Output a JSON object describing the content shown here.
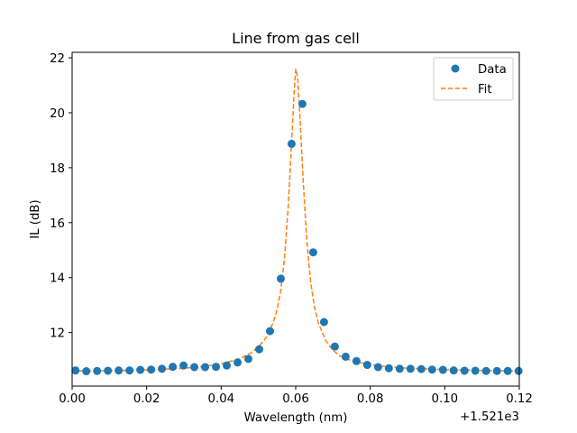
{
  "chart_data": {
    "type": "scatter",
    "title": "Line from gas cell",
    "xlabel": "Wavelength (nm)",
    "ylabel": "IL (dB)",
    "x_offset_label": "+1.521e3",
    "xlim": [
      0.0,
      0.12
    ],
    "ylim": [
      10.05,
      22.2
    ],
    "grid": false,
    "legend_position": "top-right",
    "x_ticks": [
      0.0,
      0.02,
      0.04,
      0.06,
      0.08,
      0.1,
      0.12
    ],
    "x_tick_labels": [
      "0.00",
      "0.02",
      "0.04",
      "0.06",
      "0.08",
      "0.10",
      "0.12"
    ],
    "y_ticks": [
      12,
      14,
      16,
      18,
      20,
      22
    ],
    "y_tick_labels": [
      "12",
      "14",
      "16",
      "18",
      "20",
      "22"
    ],
    "series": [
      {
        "name": "Data",
        "kind": "scatter",
        "color": "#1f77b4",
        "x": [
          0.0009,
          0.0038,
          0.0067,
          0.0096,
          0.0125,
          0.0154,
          0.0183,
          0.0212,
          0.0241,
          0.027,
          0.0299,
          0.0328,
          0.0357,
          0.0386,
          0.0415,
          0.0444,
          0.0473,
          0.0502,
          0.0531,
          0.056,
          0.0589,
          0.0618,
          0.0647,
          0.0676,
          0.0705,
          0.0734,
          0.0763,
          0.0792,
          0.0821,
          0.085,
          0.0879,
          0.0908,
          0.0937,
          0.0966,
          0.0995,
          0.1024,
          0.1053,
          0.1082,
          0.1111,
          0.114,
          0.1169,
          0.1198
        ],
        "y": [
          10.62,
          10.59,
          10.6,
          10.61,
          10.62,
          10.62,
          10.64,
          10.65,
          10.68,
          10.75,
          10.8,
          10.74,
          10.74,
          10.75,
          10.8,
          10.91,
          11.04,
          11.39,
          12.05,
          13.96,
          18.87,
          20.32,
          14.92,
          12.38,
          11.49,
          11.12,
          10.96,
          10.82,
          10.74,
          10.7,
          10.68,
          10.68,
          10.67,
          10.65,
          10.64,
          10.62,
          10.61,
          10.61,
          10.6,
          10.6,
          10.6,
          10.6
        ]
      },
      {
        "name": "Fit",
        "kind": "line",
        "style": "dashed",
        "color": "#ff7f0e",
        "x": [
          0.0,
          0.01,
          0.02,
          0.03,
          0.035,
          0.04,
          0.045,
          0.048,
          0.05,
          0.052,
          0.054,
          0.055,
          0.056,
          0.057,
          0.058,
          0.059,
          0.0595,
          0.06,
          0.0605,
          0.061,
          0.062,
          0.063,
          0.064,
          0.065,
          0.066,
          0.068,
          0.07,
          0.072,
          0.075,
          0.08,
          0.085,
          0.09,
          0.1,
          0.11,
          0.12
        ],
        "y": [
          10.6,
          10.61,
          10.64,
          10.7,
          10.76,
          10.86,
          11.04,
          11.26,
          11.48,
          11.8,
          12.37,
          12.83,
          13.55,
          14.72,
          16.6,
          19.18,
          20.55,
          21.6,
          21.3,
          20.2,
          17.55,
          15.3,
          13.85,
          12.95,
          12.38,
          11.72,
          11.35,
          11.14,
          10.97,
          10.83,
          10.75,
          10.7,
          10.65,
          10.62,
          10.6
        ]
      }
    ]
  }
}
